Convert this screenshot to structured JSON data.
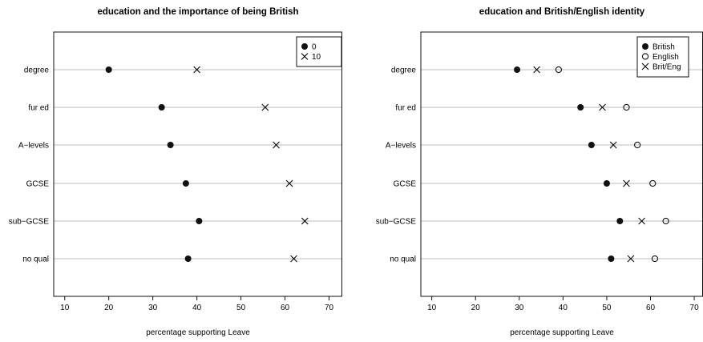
{
  "chart_data": [
    {
      "type": "scatter",
      "title": "education and the importance of being British",
      "xlabel": "percentage supporting Leave",
      "ylabel": "",
      "xlim": [
        7.5,
        73
      ],
      "xticks": [
        "10",
        "20",
        "30",
        "40",
        "50",
        "60",
        "70"
      ],
      "categories": [
        "degree",
        "fur ed",
        "A−levels",
        "GCSE",
        "sub−GCSE",
        "no qual"
      ],
      "series": [
        {
          "name": "0",
          "marker": "dot",
          "values": [
            20,
            32,
            34,
            37.5,
            40.5,
            38
          ]
        },
        {
          "name": "10",
          "marker": "cross",
          "values": [
            40,
            55.5,
            58,
            61,
            64.5,
            62
          ]
        }
      ],
      "legend": "top-right",
      "grid": "horizontal"
    },
    {
      "type": "scatter",
      "title": "education and British/English identity",
      "xlabel": "percentage supporting Leave",
      "ylabel": "",
      "xlim": [
        7.5,
        72
      ],
      "xticks": [
        "10",
        "20",
        "30",
        "40",
        "50",
        "60",
        "70"
      ],
      "categories": [
        "degree",
        "fur ed",
        "A−levels",
        "GCSE",
        "sub−GCSE",
        "no qual"
      ],
      "series": [
        {
          "name": "British",
          "marker": "dot",
          "values": [
            29.5,
            44,
            46.5,
            50,
            53,
            51
          ]
        },
        {
          "name": "English",
          "marker": "circle",
          "values": [
            39,
            54.5,
            57,
            60.5,
            63.5,
            61
          ]
        },
        {
          "name": "Brit/Eng",
          "marker": "cross",
          "values": [
            34,
            49,
            51.5,
            54.5,
            58,
            55.5
          ]
        }
      ],
      "legend": "top-right",
      "grid": "horizontal"
    }
  ],
  "colors": {
    "marker": "#111111",
    "grid": "#bbbbbb",
    "frame": "#111111"
  }
}
